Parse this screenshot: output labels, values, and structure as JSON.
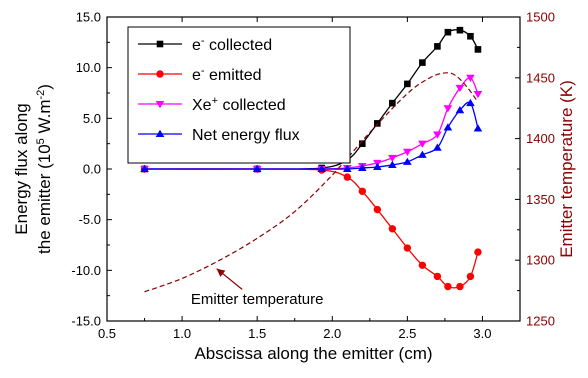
{
  "chart_data": {
    "type": "line",
    "xlabel": "Abscissa along the emitter (cm)",
    "ylabel_lines": [
      "Energy flux along",
      "the emitter (10",
      "5",
      " W.m",
      "-2",
      ")"
    ],
    "y2label": "Emitter temperature (K)",
    "xlim": [
      0.5,
      3.25
    ],
    "ylim": [
      -15,
      15
    ],
    "y2lim": [
      1250,
      1500
    ],
    "xticks": [
      0.5,
      1.0,
      1.5,
      2.0,
      2.5,
      3.0
    ],
    "xtick_labels": [
      "0.5",
      "1.0",
      "1.5",
      "2.0",
      "2.5",
      "3.0"
    ],
    "yticks": [
      -15,
      -10,
      -5,
      0,
      5,
      10,
      15
    ],
    "ytick_labels": [
      "-15.0",
      "-10.0",
      "-5.0",
      "0.0",
      "5.0",
      "10.0",
      "15.0"
    ],
    "y2ticks": [
      1250,
      1300,
      1350,
      1400,
      1450,
      1500
    ],
    "y2tick_labels": [
      "1250",
      "1300",
      "1350",
      "1400",
      "1450",
      "1500"
    ],
    "legend_position": "top-left",
    "legend": [
      {
        "base": "e",
        "sup": "-",
        "rest": " collected",
        "color": "#000000",
        "marker": "square"
      },
      {
        "base": "e",
        "sup": "-",
        "rest": " emitted",
        "color": "#ff0000",
        "marker": "circle"
      },
      {
        "base": "Xe",
        "sup": "+",
        "rest": " collected",
        "color": "#ff00ff",
        "marker": "triangle-down"
      },
      {
        "base": "Net energy flux",
        "sup": "",
        "rest": "",
        "color": "#0000ff",
        "marker": "triangle-up"
      }
    ],
    "series": [
      {
        "key": "e_collected",
        "axis": "left",
        "color": "#000000",
        "marker": "square",
        "x": [
          0.75,
          1.5,
          1.93,
          2.1,
          2.2,
          2.3,
          2.4,
          2.5,
          2.6,
          2.7,
          2.77,
          2.85,
          2.92,
          2.97
        ],
        "y": [
          0.0,
          0.0,
          0.1,
          0.9,
          2.5,
          4.5,
          6.5,
          8.4,
          10.5,
          12.1,
          13.5,
          13.7,
          13.1,
          11.8
        ]
      },
      {
        "key": "e_emitted",
        "axis": "left",
        "color": "#ff0000",
        "marker": "circle",
        "x": [
          0.75,
          1.5,
          1.93,
          2.1,
          2.2,
          2.3,
          2.4,
          2.5,
          2.6,
          2.7,
          2.77,
          2.85,
          2.92,
          2.97
        ],
        "y": [
          0.0,
          0.0,
          -0.1,
          -0.8,
          -2.2,
          -4.0,
          -5.9,
          -7.8,
          -9.5,
          -10.6,
          -11.6,
          -11.6,
          -10.6,
          -8.2
        ]
      },
      {
        "key": "xe_collected",
        "axis": "left",
        "color": "#ff00ff",
        "marker": "triangle-down",
        "x": [
          0.75,
          1.5,
          1.93,
          2.1,
          2.2,
          2.3,
          2.4,
          2.5,
          2.6,
          2.7,
          2.77,
          2.85,
          2.92,
          2.97
        ],
        "y": [
          0.0,
          0.0,
          0.0,
          0.1,
          0.3,
          0.6,
          1.1,
          1.7,
          2.5,
          3.4,
          6.0,
          8.0,
          9.0,
          7.4
        ]
      },
      {
        "key": "net_flux",
        "axis": "left",
        "color": "#0000ff",
        "marker": "triangle-up",
        "x": [
          0.75,
          1.5,
          1.93,
          2.1,
          2.2,
          2.3,
          2.4,
          2.5,
          2.6,
          2.7,
          2.77,
          2.85,
          2.92,
          2.97
        ],
        "y": [
          0.0,
          0.0,
          0.0,
          0.0,
          0.1,
          0.2,
          0.4,
          0.7,
          1.4,
          2.1,
          4.1,
          5.8,
          6.5,
          4.0
        ]
      },
      {
        "key": "temperature",
        "axis": "right",
        "color": "#8b0000",
        "marker": "none",
        "dashed": true,
        "x": [
          0.75,
          1.0,
          1.25,
          1.5,
          1.75,
          2.0,
          2.25,
          2.5,
          2.65,
          2.75,
          2.82,
          2.9,
          2.97
        ],
        "y": [
          1274,
          1285,
          1300,
          1318,
          1340,
          1370,
          1405,
          1437,
          1450,
          1454,
          1452,
          1442,
          1430
        ]
      }
    ],
    "annotation": {
      "text": "Emitter temperature",
      "arrow_from": [
        1.4,
        1276
      ],
      "arrow_to": [
        1.23,
        1293
      ],
      "text_at": [
        1.5,
        1268
      ]
    }
  }
}
